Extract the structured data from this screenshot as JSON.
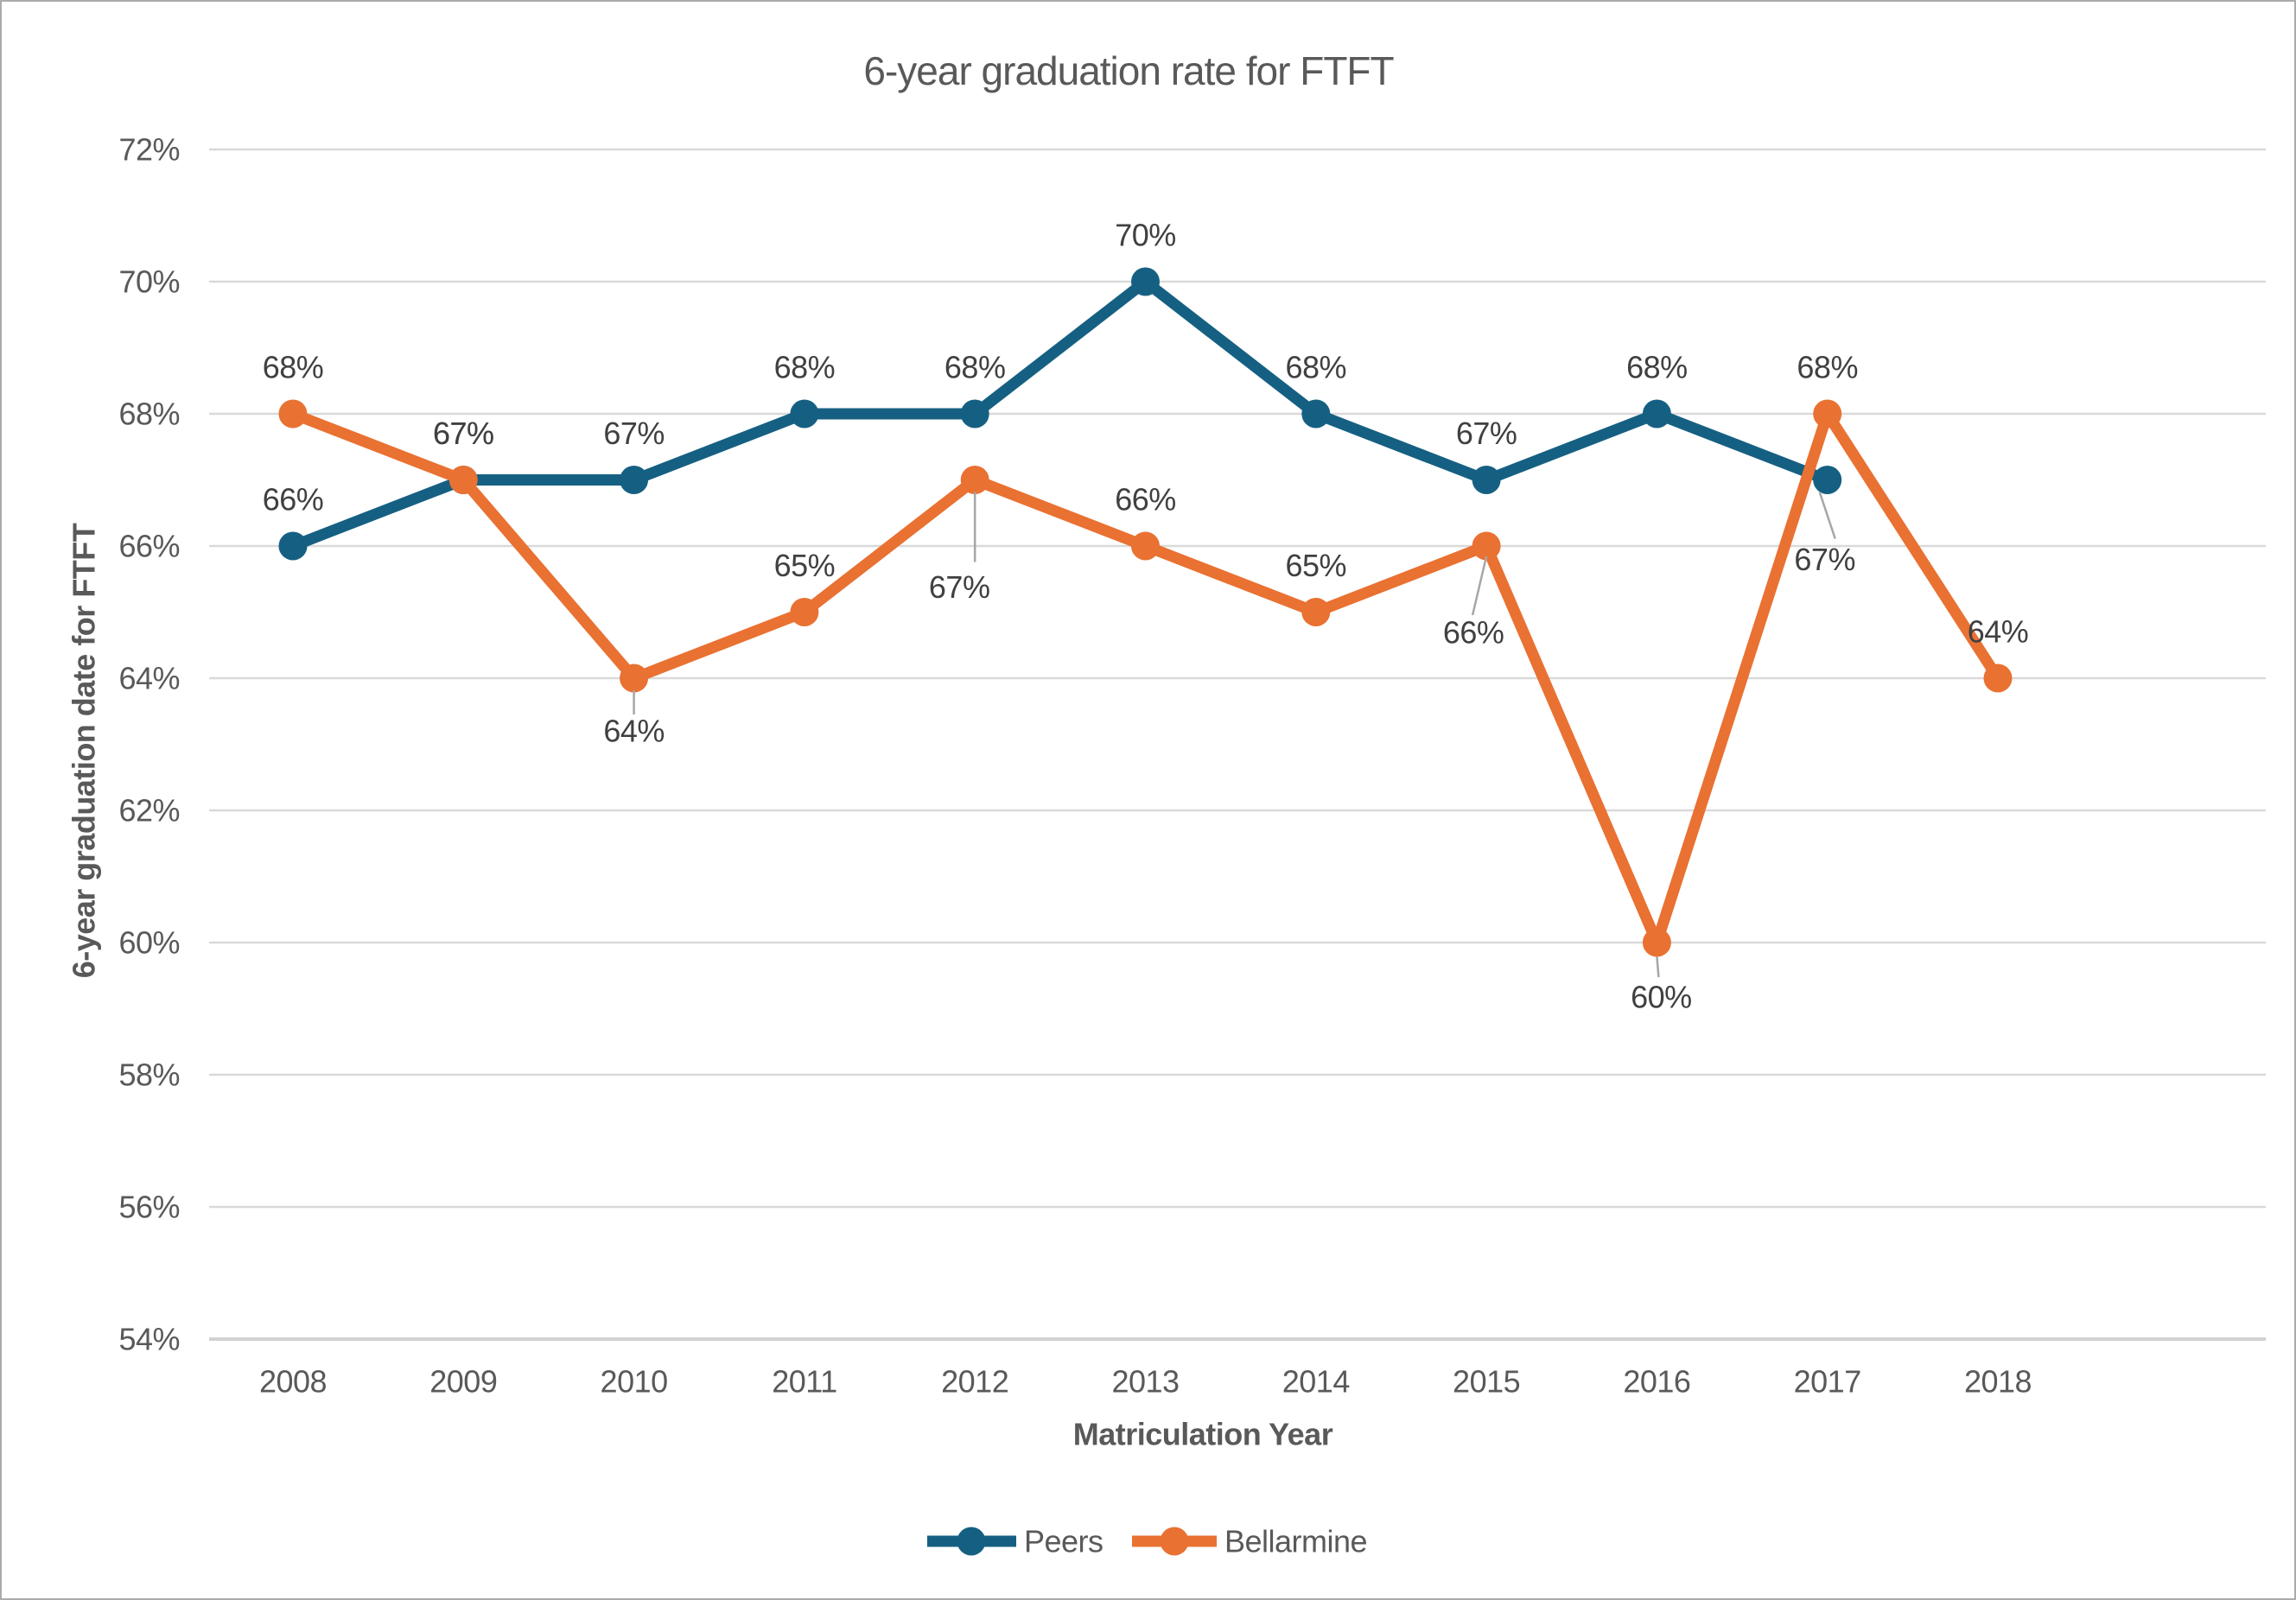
{
  "title": "6-year graduation rate for FTFT",
  "chart_data": {
    "type": "line",
    "title": "6-year graduation rate for FTFT",
    "xlabel": "Matriculation Year",
    "ylabel": "6-year graduation date for FTFT",
    "categories": [
      "2008",
      "2009",
      "2010",
      "2011",
      "2012",
      "2013",
      "2014",
      "2015",
      "2016",
      "2017",
      "2018"
    ],
    "ylim": [
      54,
      72
    ],
    "ytick_step": 2,
    "yticks": [
      72,
      70,
      68,
      66,
      64,
      62,
      60,
      58,
      56,
      54
    ],
    "ytick_labels": [
      "72%",
      "70%",
      "68%",
      "66%",
      "64%",
      "62%",
      "60%",
      "58%",
      "56%",
      "54%"
    ],
    "grid": true,
    "legend_position": "bottom",
    "series": [
      {
        "name": "Peers",
        "color": "#156082",
        "values": [
          66,
          67,
          67,
          68,
          68,
          70,
          68,
          67,
          68,
          67,
          null
        ],
        "labels": [
          "66%",
          "67%",
          "67%",
          "68%",
          "68%",
          "70%",
          "68%",
          "67%",
          "68%",
          "67%",
          ""
        ],
        "label_overrides": {
          "9": {
            "dx": -3,
            "dy": 92,
            "leader": [
              [
                -9,
                14
              ],
              [
                9,
                68
              ]
            ]
          }
        }
      },
      {
        "name": "Bellarmine",
        "color": "#E97132",
        "values": [
          68,
          67,
          64,
          65,
          67,
          66,
          65,
          66,
          60,
          68,
          64
        ],
        "labels": [
          "68%",
          "67%",
          "64%",
          "65%",
          "67%",
          "66%",
          "65%",
          "66%",
          "60%",
          "68%",
          "64%"
        ],
        "label_overrides": {
          "2": {
            "dx": 0,
            "dy": 61,
            "leader": [
              [
                0,
                14
              ],
              [
                0,
                42
              ]
            ]
          },
          "4": {
            "dx": -18,
            "dy": 124,
            "leader": [
              [
                0,
                14
              ],
              [
                0,
                95
              ]
            ]
          },
          "7": {
            "dx": -15,
            "dy": 100,
            "leader": [
              [
                0,
                12
              ],
              [
                -16,
                80
              ]
            ]
          },
          "8": {
            "dx": 5,
            "dy": 63,
            "leader": [
              [
                0,
                16
              ],
              [
                2,
                40
              ]
            ]
          }
        }
      }
    ]
  },
  "legend": {
    "items": [
      {
        "label": "Peers",
        "color": "#156082"
      },
      {
        "label": "Bellarmine",
        "color": "#E97132"
      }
    ]
  },
  "styles": {
    "text_color": "#595959",
    "data_label_color": "#404040",
    "gridline_color": "#D9D9D9",
    "axis_line_color": "#D2D2D2",
    "leader_line_color": "#A6A6A6",
    "background": "#FFFFFF",
    "border_color": "#ABABAB"
  }
}
